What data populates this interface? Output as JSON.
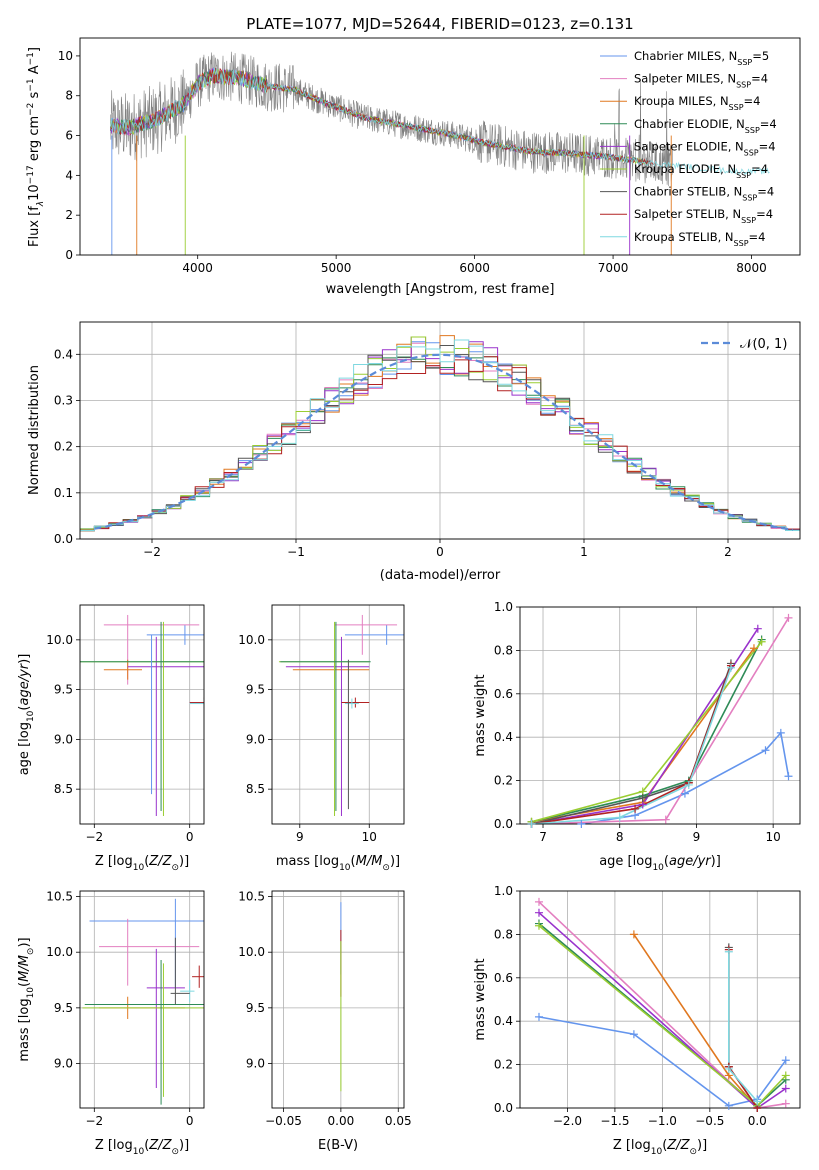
{
  "title": "PLATE=1077, MJD=52644, FIBERID=0123, z=0.131",
  "models": [
    {
      "name": "Chabrier MILES",
      "nssp": "5",
      "color": "#6495ed"
    },
    {
      "name": "Salpeter MILES",
      "nssp": "4",
      "color": "#e37fc0"
    },
    {
      "name": "Kroupa MILES",
      "nssp": "4",
      "color": "#e07820"
    },
    {
      "name": "Chabrier ELODIE",
      "nssp": "4",
      "color": "#2e8b57"
    },
    {
      "name": "Salpeter ELODIE",
      "nssp": "4",
      "color": "#9932cc"
    },
    {
      "name": "Kroupa ELODIE",
      "nssp": "4",
      "color": "#9acd32"
    },
    {
      "name": "Chabrier STELIB",
      "nssp": "4",
      "color": "#555555"
    },
    {
      "name": "Salpeter STELIB",
      "nssp": "4",
      "color": "#b22222"
    },
    {
      "name": "Kroupa STELIB",
      "nssp": "4",
      "color": "#7fd8e0"
    }
  ],
  "nssp_prefix": "N",
  "nssp_sub": "SSP",
  "data_color": "#808080",
  "chart_data": [
    {
      "id": "spectrum",
      "type": "line",
      "xlabel": "wavelength [Angstrom, rest frame]",
      "ylabel_parts": {
        "pre": "Flux [f",
        "lambda": "λ",
        "mid": "10",
        "exp1": "−17",
        "mid2": " erg cm",
        "exp2": "−2",
        "mid3": " s",
        "exp3": "−1",
        "mid4": " A",
        "exp4": "−1",
        "post": "]"
      },
      "xlim": [
        3150,
        8350
      ],
      "ylim": [
        0,
        10.9
      ],
      "xticks": [
        4000,
        5000,
        6000,
        7000,
        8000
      ],
      "yticks": [
        0,
        2,
        4,
        6,
        8,
        10
      ],
      "data_range": [
        3370,
        7430
      ],
      "model_range": [
        3370,
        8130
      ],
      "model_points": [
        [
          3370,
          6.5
        ],
        [
          3500,
          6.4
        ],
        [
          3700,
          6.8
        ],
        [
          3900,
          7.6
        ],
        [
          4000,
          8.6
        ],
        [
          4100,
          9.0
        ],
        [
          4300,
          8.9
        ],
        [
          4500,
          8.5
        ],
        [
          4700,
          8.3
        ],
        [
          4900,
          7.7
        ],
        [
          5200,
          6.9
        ],
        [
          5500,
          6.5
        ],
        [
          5800,
          6.1
        ],
        [
          6100,
          5.6
        ],
        [
          6400,
          5.2
        ],
        [
          6700,
          5.1
        ],
        [
          7000,
          4.9
        ],
        [
          7300,
          4.6
        ],
        [
          7600,
          4.4
        ],
        [
          7900,
          4.2
        ],
        [
          8130,
          4.2
        ]
      ],
      "legend_position": "upper right"
    },
    {
      "id": "residuals",
      "type": "histogram",
      "xlabel": "(data-model)/error",
      "ylabel": "Normed distribution",
      "xlim": [
        -2.5,
        2.5
      ],
      "ylim": [
        0,
        0.47
      ],
      "xticks": [
        -2,
        -1,
        0,
        1,
        2
      ],
      "yticks": [
        0.0,
        0.1,
        0.2,
        0.3,
        0.4
      ],
      "bin_width": 0.1,
      "reference_label": "𝒩(0, 1)",
      "reference_color": "#5b8bd8",
      "legend_position": "upper right"
    },
    {
      "id": "z-age",
      "type": "scatter",
      "xlabel": "Z [log10(Z/Z⊙)]",
      "ylabel": "age  [log10(age/yr)]",
      "xlim": [
        -2.3,
        0.3
      ],
      "ylim": [
        8.15,
        10.35
      ],
      "xticks": [
        -2,
        0
      ],
      "yticks": [
        8.5,
        9.0,
        9.5,
        10.0
      ],
      "crosses": [
        {
          "model": 0,
          "x": -0.1,
          "y": 10.05,
          "dx": [
            -0.8,
            0.4
          ],
          "dy": [
            -0.1,
            0.1
          ]
        },
        {
          "model": 0,
          "x": 0.3,
          "y": 9.37,
          "dx": [
            -0.3,
            0.0
          ],
          "dy": [
            -0.05,
            0.05
          ]
        },
        {
          "model": 1,
          "x": -1.3,
          "y": 10.15,
          "dx": [
            -0.5,
            1.5
          ],
          "dy": [
            -0.6,
            0.1
          ]
        },
        {
          "model": 2,
          "x": -1.3,
          "y": 9.7,
          "dx": [
            -0.5,
            0.3
          ],
          "dy": [
            -0.1,
            0.1
          ]
        },
        {
          "model": 4,
          "x": -0.7,
          "y": 9.73,
          "dx": [
            -0.6,
            1.6
          ],
          "dy": [
            -1.5,
            0.3
          ]
        },
        {
          "model": 5,
          "x": -0.55,
          "y": 9.78,
          "dx": [
            -1.75,
            0.85
          ],
          "dy": [
            -1.55,
            0.4
          ]
        },
        {
          "model": 3,
          "x": -0.6,
          "y": 9.78,
          "dx": [
            -1.7,
            0.9
          ],
          "dy": [
            -1.5,
            0.4
          ]
        },
        {
          "model": 7,
          "x": 0.3,
          "y": 9.37,
          "dx": [
            -0.3,
            0.0
          ],
          "dy": [
            -0.05,
            0.05
          ]
        },
        {
          "model": 8,
          "x": 0.3,
          "y": 9.36,
          "dx": [
            -0.3,
            0.0
          ],
          "dy": [
            -0.05,
            0.05
          ]
        },
        {
          "model": 0,
          "x": -0.8,
          "y": 9.6,
          "dx": [
            0,
            0
          ],
          "dy": [
            -1.15,
            0.45
          ]
        }
      ]
    },
    {
      "id": "mass-age",
      "type": "scatter",
      "xlabel": "mass [log10(M/M⊙)]",
      "ylabel": "",
      "xlim": [
        8.6,
        10.5
      ],
      "ylim": [
        8.15,
        10.35
      ],
      "xticks": [
        9,
        10
      ],
      "yticks": [
        8.5,
        9.0,
        9.5,
        10.0
      ],
      "crosses": [
        {
          "model": 0,
          "x": 10.25,
          "y": 10.05,
          "dx": [
            -0.6,
            0.3
          ],
          "dy": [
            -0.1,
            0.1
          ]
        },
        {
          "model": 1,
          "x": 9.9,
          "y": 10.15,
          "dx": [
            -0.4,
            0.5
          ],
          "dy": [
            -0.3,
            0.1
          ]
        },
        {
          "model": 2,
          "x": 9.5,
          "y": 9.7,
          "dx": [
            -0.6,
            0.5
          ],
          "dy": [
            -0.1,
            0.1
          ]
        },
        {
          "model": 4,
          "x": 9.6,
          "y": 9.73,
          "dx": [
            -0.8,
            0.4
          ],
          "dy": [
            -1.5,
            0.3
          ]
        },
        {
          "model": 5,
          "x": 9.5,
          "y": 9.78,
          "dx": [
            -0.8,
            0.5
          ],
          "dy": [
            -1.55,
            0.4
          ]
        },
        {
          "model": 3,
          "x": 9.52,
          "y": 9.78,
          "dx": [
            -0.8,
            0.5
          ],
          "dy": [
            -1.5,
            0.4
          ]
        },
        {
          "model": 7,
          "x": 9.8,
          "y": 9.37,
          "dx": [
            -0.2,
            0.2
          ],
          "dy": [
            -0.05,
            0.05
          ]
        },
        {
          "model": 8,
          "x": 9.75,
          "y": 9.36,
          "dx": [
            -0.1,
            0.1
          ],
          "dy": [
            -0.05,
            0.05
          ]
        },
        {
          "model": 6,
          "x": 9.7,
          "y": 9.5,
          "dx": [
            0,
            0
          ],
          "dy": [
            -1.2,
            0.3
          ]
        }
      ]
    },
    {
      "id": "mass-weight-age",
      "type": "line",
      "xlabel": "age  [log10(age/yr)]",
      "ylabel": "mass weight",
      "xlim": [
        6.7,
        10.35
      ],
      "ylim": [
        0,
        1.0
      ],
      "xticks": [
        7,
        8,
        9,
        10
      ],
      "yticks": [
        0.0,
        0.2,
        0.4,
        0.6,
        0.8,
        1.0
      ],
      "series": [
        {
          "model": 0,
          "x": [
            7.5,
            8.2,
            8.85,
            9.9,
            10.1,
            10.2
          ],
          "y": [
            0.0,
            0.04,
            0.14,
            0.34,
            0.42,
            0.22
          ]
        },
        {
          "model": 1,
          "x": [
            6.85,
            8.6,
            10.2
          ],
          "y": [
            0.0,
            0.02,
            0.95
          ]
        },
        {
          "model": 2,
          "x": [
            6.85,
            8.3,
            9.75
          ],
          "y": [
            0.01,
            0.1,
            0.81
          ]
        },
        {
          "model": 3,
          "x": [
            6.85,
            8.3,
            8.9,
            9.85
          ],
          "y": [
            0.01,
            0.13,
            0.2,
            0.85
          ]
        },
        {
          "model": 4,
          "x": [
            6.85,
            8.3,
            9.8
          ],
          "y": [
            0.0,
            0.09,
            0.9
          ]
        },
        {
          "model": 5,
          "x": [
            6.85,
            8.3,
            9.85
          ],
          "y": [
            0.01,
            0.15,
            0.84
          ]
        },
        {
          "model": 6,
          "x": [
            6.85,
            8.3,
            8.9,
            9.45
          ],
          "y": [
            0.0,
            0.12,
            0.19,
            0.74
          ]
        },
        {
          "model": 7,
          "x": [
            6.85,
            8.2,
            8.9,
            9.45
          ],
          "y": [
            0.0,
            0.07,
            0.19,
            0.73
          ]
        },
        {
          "model": 8,
          "x": [
            6.85,
            8.0,
            8.9,
            9.45
          ],
          "y": [
            0.0,
            0.03,
            0.18,
            0.72
          ]
        }
      ]
    },
    {
      "id": "z-mass",
      "type": "scatter",
      "xlabel": "Z [log10(Z/Z⊙)]",
      "ylabel": "mass [log10(M/M⊙)]",
      "xlim": [
        -2.3,
        0.3
      ],
      "ylim": [
        8.6,
        10.55
      ],
      "xticks": [
        -2,
        0
      ],
      "yticks": [
        9.0,
        9.5,
        10.0,
        10.5
      ],
      "crosses": [
        {
          "model": 0,
          "x": -0.3,
          "y": 10.28,
          "dx": [
            -1.8,
            0.6
          ],
          "dy": [
            -0.6,
            0.2
          ]
        },
        {
          "model": 1,
          "x": -1.3,
          "y": 10.05,
          "dx": [
            -0.6,
            1.5
          ],
          "dy": [
            -0.35,
            0.25
          ]
        },
        {
          "model": 2,
          "x": -1.3,
          "y": 9.5,
          "dx": [
            -0.6,
            1.2
          ],
          "dy": [
            -0.1,
            0.1
          ]
        },
        {
          "model": 4,
          "x": -0.7,
          "y": 9.68,
          "dx": [
            -0.2,
            0.6
          ],
          "dy": [
            -0.9,
            0.35
          ]
        },
        {
          "model": 5,
          "x": -0.55,
          "y": 9.5,
          "dx": [
            -1.7,
            1.0
          ],
          "dy": [
            -0.8,
            0.4
          ]
        },
        {
          "model": 3,
          "x": -0.6,
          "y": 9.53,
          "dx": [
            -1.6,
            0.9
          ],
          "dy": [
            -0.9,
            0.4
          ]
        },
        {
          "model": 7,
          "x": 0.2,
          "y": 9.78,
          "dx": [
            -0.15,
            0.15
          ],
          "dy": [
            -0.1,
            0.1
          ]
        },
        {
          "model": 8,
          "x": 0.0,
          "y": 9.65,
          "dx": [
            -0.2,
            0.1
          ],
          "dy": [
            -0.1,
            0.1
          ]
        },
        {
          "model": 6,
          "x": -0.3,
          "y": 9.63,
          "dx": [
            -0.1,
            0.3
          ],
          "dy": [
            -0.1,
            0.5
          ]
        }
      ]
    },
    {
      "id": "ebv-mass",
      "type": "scatter",
      "xlabel": "E(B-V)",
      "ylabel": "",
      "xlim": [
        -0.06,
        0.055
      ],
      "ylim": [
        8.6,
        10.55
      ],
      "xticks": [
        -0.05,
        0.0,
        0.05
      ],
      "yticks": [
        9.0,
        9.5,
        10.0,
        10.5
      ],
      "crosses": [
        {
          "model": 0,
          "x": 0.0,
          "y": 10.2,
          "dx": [
            0,
            0
          ],
          "dy": [
            -0.4,
            0.25
          ]
        },
        {
          "model": 7,
          "x": 0.0,
          "y": 10.1,
          "dx": [
            0,
            0
          ],
          "dy": [
            -0.5,
            0.1
          ]
        },
        {
          "model": 5,
          "x": 0.0,
          "y": 9.7,
          "dx": [
            0,
            0
          ],
          "dy": [
            -0.95,
            0.4
          ]
        }
      ]
    },
    {
      "id": "mass-weight-z",
      "type": "line",
      "xlabel": "Z [log10(Z/Z⊙)]",
      "ylabel": "mass weight",
      "xlim": [
        -2.5,
        0.45
      ],
      "ylim": [
        0,
        1.0
      ],
      "xticks": [
        -2.0,
        -1.5,
        -1.0,
        -0.5,
        0.0
      ],
      "yticks": [
        0.0,
        0.2,
        0.4,
        0.6,
        0.8,
        1.0
      ],
      "series": [
        {
          "model": 0,
          "x": [
            -2.3,
            -1.3,
            -0.3,
            0.0,
            0.3
          ],
          "y": [
            0.42,
            0.34,
            0.01,
            0.04,
            0.22
          ]
        },
        {
          "model": 1,
          "x": [
            -2.3,
            0.0,
            0.3
          ],
          "y": [
            0.95,
            0.0,
            0.02
          ]
        },
        {
          "model": 2,
          "x": [
            -1.3,
            -0.3,
            0.0
          ],
          "y": [
            0.8,
            0.15,
            0.0
          ]
        },
        {
          "model": 3,
          "x": [
            -2.3,
            0.0,
            0.3
          ],
          "y": [
            0.85,
            0.01,
            0.13
          ]
        },
        {
          "model": 4,
          "x": [
            -2.3,
            0.0,
            0.3
          ],
          "y": [
            0.9,
            0.0,
            0.09
          ]
        },
        {
          "model": 5,
          "x": [
            -2.3,
            0.0,
            0.3
          ],
          "y": [
            0.84,
            0.01,
            0.15
          ]
        },
        {
          "model": 6,
          "x": [
            -0.3,
            -0.3,
            0.0,
            0.0
          ],
          "y": [
            0.74,
            0.19,
            0.0,
            0.0
          ]
        },
        {
          "model": 7,
          "x": [
            -0.3,
            -0.3,
            0.0
          ],
          "y": [
            0.73,
            0.19,
            0.0
          ]
        },
        {
          "model": 8,
          "x": [
            -0.3,
            -0.3,
            0.0
          ],
          "y": [
            0.72,
            0.18,
            0.03
          ]
        }
      ]
    }
  ]
}
